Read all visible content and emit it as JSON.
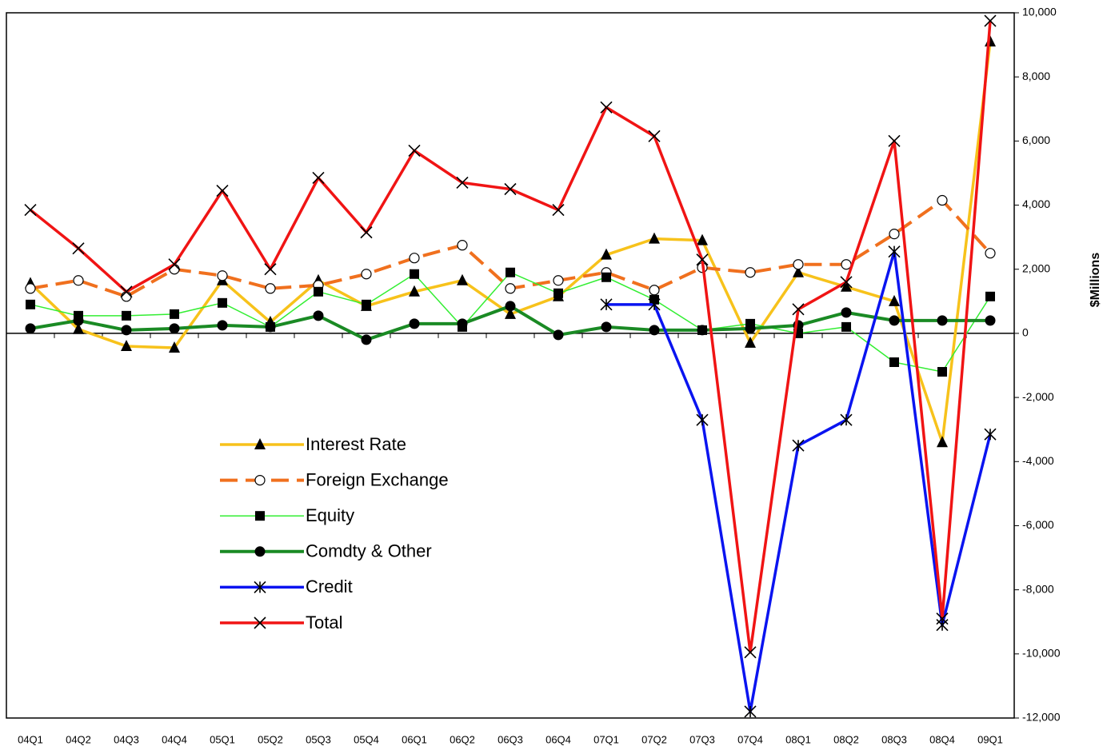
{
  "chart_data": {
    "type": "line",
    "y_label": "$Millions",
    "categories": [
      "04Q1",
      "04Q2",
      "04Q3",
      "04Q4",
      "05Q1",
      "05Q2",
      "05Q3",
      "05Q4",
      "06Q1",
      "06Q2",
      "06Q3",
      "06Q4",
      "07Q1",
      "07Q2",
      "07Q3",
      "07Q4",
      "08Q1",
      "08Q2",
      "08Q3",
      "08Q4",
      "09Q1"
    ],
    "ylim": [
      -12000,
      10000
    ],
    "yticks": [
      {
        "value": 10000,
        "label": "10,000"
      },
      {
        "value": 8000,
        "label": "8,000"
      },
      {
        "value": 6000,
        "label": "6,000"
      },
      {
        "value": 4000,
        "label": "4,000"
      },
      {
        "value": 2000,
        "label": "2,000"
      },
      0,
      {
        "value": -2000,
        "label": "-2,000"
      },
      {
        "value": -4000,
        "label": "-4,000"
      },
      {
        "value": -6000,
        "label": "-6,000"
      },
      {
        "value": -8000,
        "label": "-8,000"
      },
      {
        "value": -10000,
        "label": "-10,000"
      },
      {
        "value": -12000,
        "label": "-12,000"
      }
    ],
    "series": [
      {
        "name": "Interest Rate",
        "color": "#f7c21b",
        "marker": "triangle",
        "dashed": false,
        "values": [
          1560,
          130,
          -400,
          -450,
          1650,
          350,
          1650,
          850,
          1300,
          1650,
          600,
          1150,
          2450,
          2950,
          2900,
          -300,
          1900,
          1450,
          1000,
          -3400,
          9100
        ]
      },
      {
        "name": "Foreign Exchange",
        "color": "#f0701e",
        "marker": "open-circle",
        "dashed": true,
        "values": [
          1400,
          1650,
          1150,
          2000,
          1800,
          1400,
          1500,
          1850,
          2350,
          2750,
          1400,
          1650,
          1900,
          1350,
          2050,
          1900,
          2150,
          2150,
          3100,
          4150,
          2500
        ]
      },
      {
        "name": "Equity",
        "color": "#33ee33",
        "marker": "square",
        "dashed": false,
        "values": [
          900,
          550,
          550,
          600,
          950,
          200,
          1300,
          900,
          1850,
          200,
          1900,
          1250,
          1750,
          1050,
          100,
          300,
          0,
          200,
          -900,
          -1200,
          1150
        ]
      },
      {
        "name": "Comdty & Other",
        "color": "#1a8a24",
        "marker": "circle",
        "dashed": false,
        "values": [
          150,
          400,
          100,
          150,
          250,
          200,
          550,
          -200,
          300,
          300,
          850,
          -50,
          200,
          100,
          100,
          150,
          250,
          650,
          400,
          400,
          400
        ]
      },
      {
        "name": "Credit",
        "color": "#0a14f0",
        "marker": "asterisk",
        "dashed": false,
        "values": [
          null,
          null,
          null,
          null,
          null,
          null,
          null,
          null,
          null,
          null,
          null,
          null,
          900,
          900,
          -2700,
          -11800,
          -3500,
          -2700,
          2550,
          -9100,
          -3150
        ]
      },
      {
        "name": "Total",
        "color": "#f01414",
        "marker": "x",
        "dashed": false,
        "values": [
          3850,
          2650,
          1300,
          2150,
          4450,
          2000,
          4850,
          3150,
          5700,
          4700,
          4500,
          3850,
          7050,
          6150,
          2300,
          -9950,
          750,
          1600,
          6000,
          -8900,
          9750
        ]
      }
    ]
  }
}
